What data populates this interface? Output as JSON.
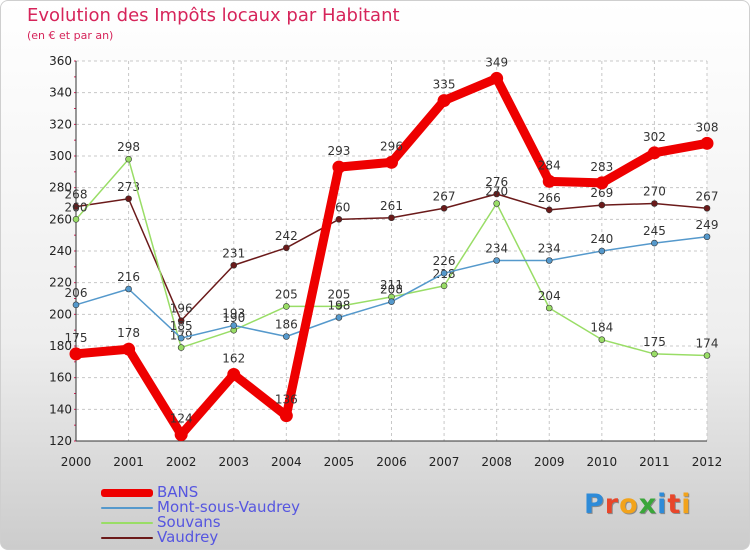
{
  "chart_data": {
    "type": "line",
    "title": "Evolution des Impôts locaux par Habitant",
    "subtitle": "(en € et par an)",
    "xlabel": "",
    "ylabel": "",
    "x": [
      "2000",
      "2001",
      "2002",
      "2003",
      "2004",
      "2005",
      "2006",
      "2007",
      "2008",
      "2009",
      "2010",
      "2011",
      "2012"
    ],
    "ylim": [
      120,
      360
    ],
    "yticks": [
      120,
      140,
      160,
      180,
      200,
      220,
      240,
      260,
      280,
      300,
      320,
      340,
      360
    ],
    "grid": true,
    "legend_position": "bottom-left",
    "series": [
      {
        "name": "Vaudrey",
        "color": "#6b1a1a",
        "values": [
          268,
          273,
          196,
          231,
          242,
          260,
          261,
          267,
          276,
          266,
          269,
          270,
          267
        ]
      },
      {
        "name": "Souvans",
        "color": "#99dd66",
        "values": [
          260,
          298,
          179,
          190,
          205,
          205,
          211,
          218,
          270,
          204,
          184,
          175,
          174
        ]
      },
      {
        "name": "Mont-sous-Vaudrey",
        "color": "#5599cc",
        "values": [
          206,
          216,
          185,
          193,
          186,
          198,
          208,
          226,
          234,
          234,
          240,
          245,
          249
        ]
      },
      {
        "name": "BANS",
        "color": "#ee0000",
        "values": [
          175,
          178,
          124,
          162,
          136,
          293,
          296,
          335,
          349,
          284,
          283,
          302,
          308
        ]
      }
    ]
  },
  "legend": [
    {
      "name": "BANS",
      "color": "#ee0000"
    },
    {
      "name": "Mont-sous-Vaudrey",
      "color": "#5599cc"
    },
    {
      "name": "Souvans",
      "color": "#99dd66"
    },
    {
      "name": "Vaudrey",
      "color": "#6b1a1a"
    }
  ],
  "logo": {
    "letters": [
      "P",
      "r",
      "o",
      "x",
      "i",
      "t",
      "i"
    ],
    "colors": [
      "#2e8bd8",
      "#e8462a",
      "#f2a31b",
      "#3aa63a",
      "#2e8bd8",
      "#e8462a",
      "#f2a31b"
    ]
  }
}
